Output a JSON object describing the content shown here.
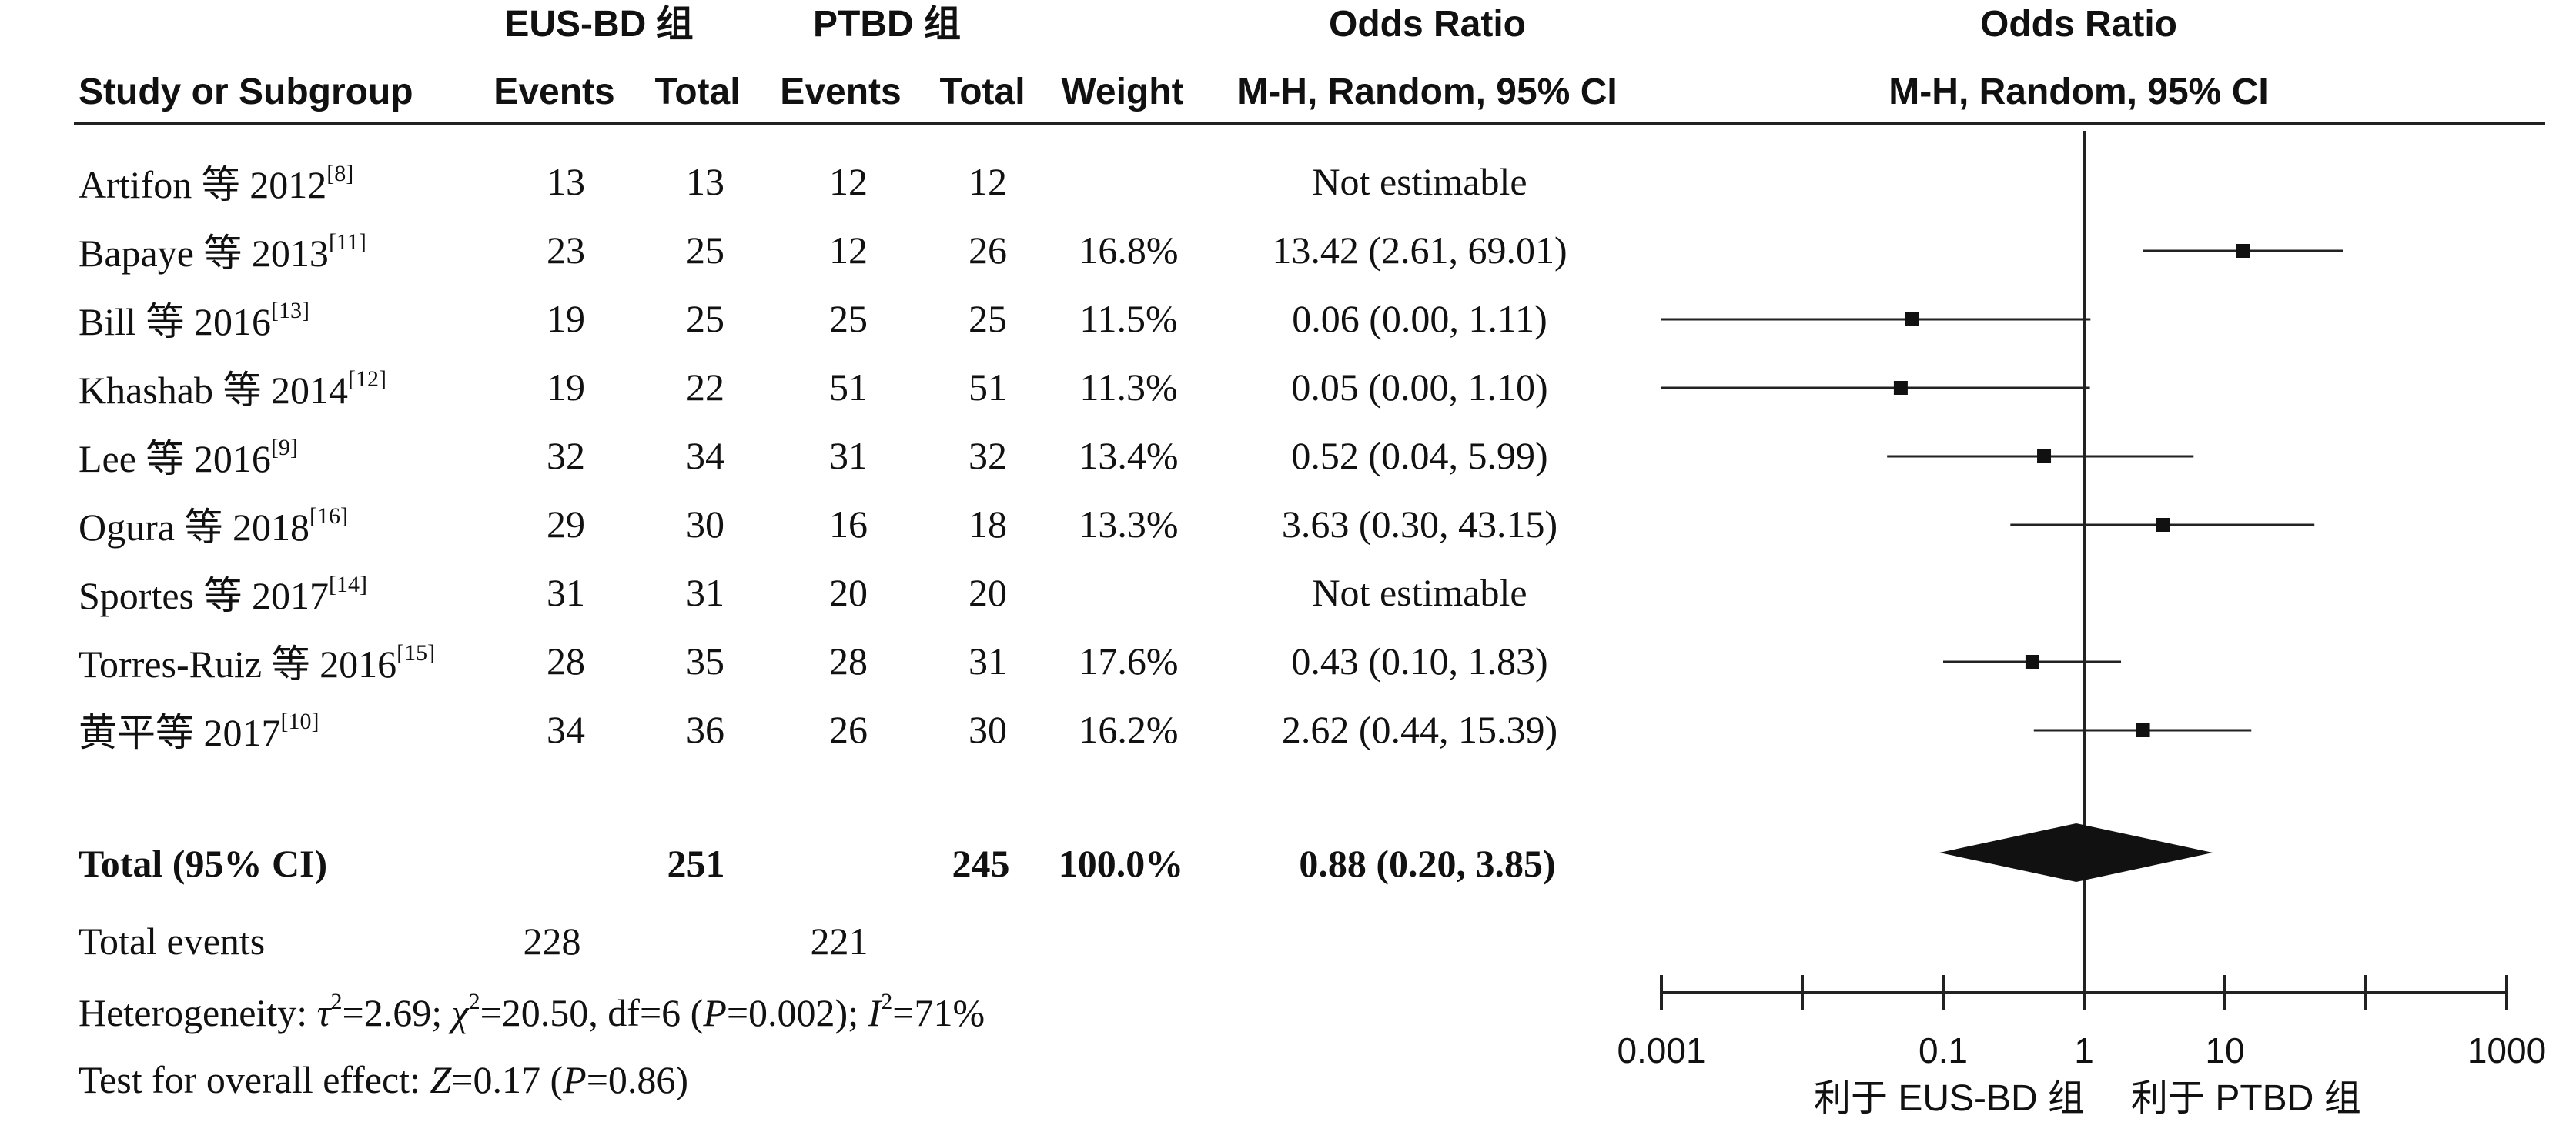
{
  "header": {
    "group1": "EUS-BD 组",
    "group2": "PTBD 组",
    "or_title_table": "Odds Ratio",
    "or_title_plot": "Odds Ratio",
    "study": "Study or Subgroup",
    "events1": "Events",
    "total1": "Total",
    "events2": "Events",
    "total2": "Total",
    "weight": "Weight",
    "method_table": "M-H, Random, 95% CI",
    "method_plot": "M-H, Random, 95% CI"
  },
  "studies": [
    {
      "name": "Artifon 等 2012",
      "ref": "[8]",
      "e1": "13",
      "t1": "13",
      "e2": "12",
      "t2": "12",
      "weight": "",
      "ci_text": "Not estimable"
    },
    {
      "name": "Bapaye 等 2013",
      "ref": "[11]",
      "e1": "23",
      "t1": "25",
      "e2": "12",
      "t2": "26",
      "weight": "16.8%",
      "ci_text": "13.42 (2.61, 69.01)"
    },
    {
      "name": "Bill 等 2016",
      "ref": "[13]",
      "e1": "19",
      "t1": "25",
      "e2": "25",
      "t2": "25",
      "weight": "11.5%",
      "ci_text": "0.06 (0.00, 1.11)"
    },
    {
      "name": "Khashab 等 2014",
      "ref": "[12]",
      "e1": "19",
      "t1": "22",
      "e2": "51",
      "t2": "51",
      "weight": "11.3%",
      "ci_text": "0.05 (0.00, 1.10)"
    },
    {
      "name": "Lee 等 2016",
      "ref": "[9]",
      "e1": "32",
      "t1": "34",
      "e2": "31",
      "t2": "32",
      "weight": "13.4%",
      "ci_text": "0.52 (0.04, 5.99)"
    },
    {
      "name": "Ogura 等 2018",
      "ref": "[16]",
      "e1": "29",
      "t1": "30",
      "e2": "16",
      "t2": "18",
      "weight": "13.3%",
      "ci_text": "3.63 (0.30, 43.15)"
    },
    {
      "name": "Sportes 等 2017",
      "ref": "[14]",
      "e1": "31",
      "t1": "31",
      "e2": "20",
      "t2": "20",
      "weight": "",
      "ci_text": "Not estimable"
    },
    {
      "name": "Torres-Ruiz 等 2016",
      "ref": "[15]",
      "e1": "28",
      "t1": "35",
      "e2": "28",
      "t2": "31",
      "weight": "17.6%",
      "ci_text": "0.43 (0.10, 1.83)"
    },
    {
      "name": "黄平等 2017",
      "ref": "[10]",
      "e1": "34",
      "t1": "36",
      "e2": "26",
      "t2": "30",
      "weight": "16.2%",
      "ci_text": "2.62 (0.44, 15.39)"
    }
  ],
  "total": {
    "label": "Total (95% CI)",
    "t1": "251",
    "t2": "245",
    "weight": "100.0%",
    "ci_text": "0.88 (0.20, 3.85)"
  },
  "total_events": {
    "label": "Total events",
    "e1": "228",
    "e2": "221"
  },
  "heterogeneity": {
    "prefix": "Heterogeneity: ",
    "tau": "τ",
    "tau_val": "=2.69; ",
    "chi": "χ",
    "chi_val": "=20.50, df=6 (",
    "p": "P",
    "p_val": "=0.002); ",
    "i": "I",
    "i_val": "=71%"
  },
  "overall": {
    "prefix": "Test for overall effect: ",
    "z": "Z",
    "z_val": "=0.17 (",
    "p": "P",
    "p_val": "=0.86)"
  },
  "favors": {
    "left": "利于 EUS-BD 组",
    "right": "利于 PTBD 组"
  },
  "chart_data": {
    "type": "forest",
    "title": "Odds Ratio",
    "xscale": "log",
    "xlim": [
      0.001,
      1000
    ],
    "ticks": [
      {
        "value": 0.001,
        "label": "0.001"
      },
      {
        "value": 0.1,
        "label": "0.1"
      },
      {
        "value": 1,
        "label": "1"
      },
      {
        "value": 10,
        "label": "10"
      },
      {
        "value": 1000,
        "label": "1000"
      }
    ],
    "points": [
      {
        "study": "Artifon 等 2012",
        "or": null,
        "lo": null,
        "hi": null
      },
      {
        "study": "Bapaye 等 2013",
        "or": 13.42,
        "lo": 2.61,
        "hi": 69.01
      },
      {
        "study": "Bill 等 2016",
        "or": 0.06,
        "lo": 0.001,
        "hi": 1.11
      },
      {
        "study": "Khashab 等 2014",
        "or": 0.05,
        "lo": 0.001,
        "hi": 1.1
      },
      {
        "study": "Lee 等 2016",
        "or": 0.52,
        "lo": 0.04,
        "hi": 5.99
      },
      {
        "study": "Ogura 等 2018",
        "or": 3.63,
        "lo": 0.3,
        "hi": 43.15
      },
      {
        "study": "Sportes 等 2017",
        "or": null,
        "lo": null,
        "hi": null
      },
      {
        "study": "Torres-Ruiz 等 2016",
        "or": 0.43,
        "lo": 0.1,
        "hi": 1.83
      },
      {
        "study": "黄平等 2017",
        "or": 2.62,
        "lo": 0.44,
        "hi": 15.39
      }
    ],
    "pooled": {
      "or": 0.88,
      "lo": 0.2,
      "hi": 3.85
    }
  }
}
